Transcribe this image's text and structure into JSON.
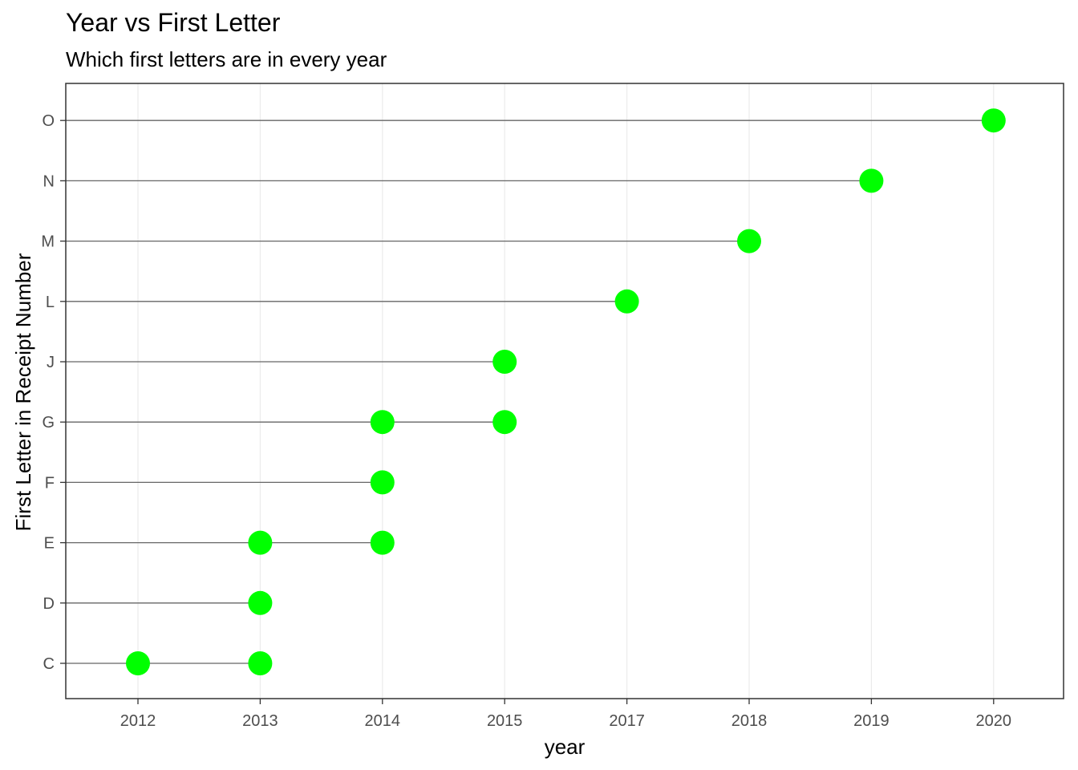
{
  "title": "Year vs First Letter",
  "subtitle": "Which first letters are in every year",
  "colors": {
    "point": "#00ff00",
    "segment": "#666666",
    "grid": "#ebebeb",
    "panel_border": "#333333",
    "tick_text": "#4d4d4d"
  },
  "chart_data": {
    "type": "scatter",
    "title": "Year vs First Letter",
    "subtitle": "Which first letters are in every year",
    "xlabel": "year",
    "ylabel": "First Letter in Receipt Number",
    "x_categories": [
      "2012",
      "2013",
      "2014",
      "2015",
      "2017",
      "2018",
      "2019",
      "2020"
    ],
    "y_categories": [
      "C",
      "D",
      "E",
      "F",
      "G",
      "J",
      "L",
      "M",
      "N",
      "O"
    ],
    "points": [
      {
        "x": "2012",
        "y": "C"
      },
      {
        "x": "2013",
        "y": "C"
      },
      {
        "x": "2013",
        "y": "D"
      },
      {
        "x": "2013",
        "y": "E"
      },
      {
        "x": "2014",
        "y": "E"
      },
      {
        "x": "2014",
        "y": "F"
      },
      {
        "x": "2014",
        "y": "G"
      },
      {
        "x": "2015",
        "y": "G"
      },
      {
        "x": "2015",
        "y": "J"
      },
      {
        "x": "2017",
        "y": "L"
      },
      {
        "x": "2018",
        "y": "M"
      },
      {
        "x": "2019",
        "y": "N"
      },
      {
        "x": "2020",
        "y": "O"
      }
    ],
    "segments_from_axis_to_max_year": true,
    "grid": true,
    "legend": "none"
  }
}
